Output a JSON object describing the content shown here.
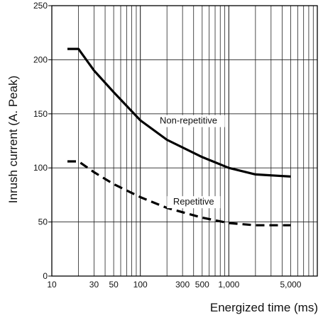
{
  "chart_data": {
    "type": "line",
    "title": "",
    "xlabel": "Energized time (ms)",
    "ylabel": "Inrush current (A. Peak)",
    "x_scale": "log",
    "xlim": [
      10,
      10000
    ],
    "ylim": [
      0,
      250
    ],
    "grid": true,
    "x_tick_labels": [
      {
        "value": 10,
        "label": "10"
      },
      {
        "value": 30,
        "label": "30"
      },
      {
        "value": 50,
        "label": "50"
      },
      {
        "value": 100,
        "label": "100"
      },
      {
        "value": 300,
        "label": "300"
      },
      {
        "value": 500,
        "label": "500"
      },
      {
        "value": 1000,
        "label": "1,000"
      },
      {
        "value": 5000,
        "label": "5,000"
      }
    ],
    "y_ticks": [
      {
        "value": 0,
        "label": "0"
      },
      {
        "value": 50,
        "label": "50"
      },
      {
        "value": 100,
        "label": "100"
      },
      {
        "value": 150,
        "label": "150"
      },
      {
        "value": 200,
        "label": "200"
      },
      {
        "value": 250,
        "label": "250"
      }
    ],
    "series": [
      {
        "name": "Non-repetitive",
        "style": "solid",
        "color": "#000000",
        "x": [
          15,
          20,
          30,
          50,
          100,
          200,
          500,
          1000,
          2000,
          5000
        ],
        "y": [
          210,
          210,
          190,
          170,
          144,
          126,
          110,
          100,
          94,
          92
        ]
      },
      {
        "name": "Repetitive",
        "style": "dashed",
        "color": "#000000",
        "x": [
          15,
          20,
          30,
          50,
          100,
          200,
          500,
          1000,
          2000,
          5000
        ],
        "y": [
          106,
          106,
          96,
          85,
          73,
          63,
          54,
          49,
          47,
          47
        ]
      }
    ],
    "annotations": [
      {
        "text": "Non-repetitive",
        "series": 0
      },
      {
        "text": "Repetitive",
        "series": 1
      }
    ]
  }
}
